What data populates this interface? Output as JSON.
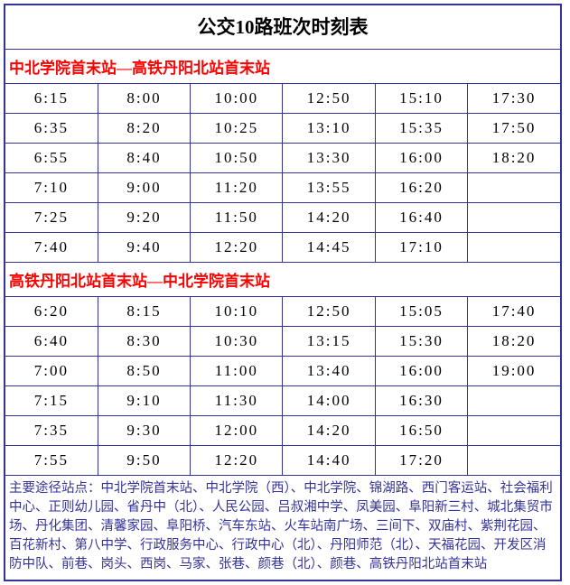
{
  "title": "公交10路班次时刻表",
  "direction1": {
    "header": "中北学院首末站—高铁丹阳北站首末站",
    "rows": [
      [
        "6:15",
        "8:00",
        "10:00",
        "12:50",
        "15:10",
        "17:30"
      ],
      [
        "6:35",
        "8:20",
        "10:25",
        "13:10",
        "15:35",
        "17:50"
      ],
      [
        "6:55",
        "8:40",
        "10:50",
        "13:30",
        "16:00",
        "18:20"
      ],
      [
        "7:10",
        "9:00",
        "11:20",
        "13:55",
        "16:20",
        ""
      ],
      [
        "7:25",
        "9:20",
        "11:50",
        "14:20",
        "16:40",
        ""
      ],
      [
        "7:40",
        "9:40",
        "12:20",
        "14:45",
        "17:10",
        ""
      ]
    ]
  },
  "direction2": {
    "header": "高铁丹阳北站首末站—中北学院首末站",
    "rows": [
      [
        "6:20",
        "8:15",
        "10:10",
        "12:50",
        "15:05",
        "17:40"
      ],
      [
        "6:40",
        "8:30",
        "10:30",
        "13:15",
        "15:30",
        "18:20"
      ],
      [
        "7:00",
        "8:50",
        "11:00",
        "13:40",
        "16:00",
        "19:00"
      ],
      [
        "7:15",
        "9:10",
        "11:30",
        "14:00",
        "16:30",
        ""
      ],
      [
        "7:35",
        "9:30",
        "12:00",
        "14:20",
        "16:50",
        ""
      ],
      [
        "7:55",
        "9:50",
        "12:20",
        "14:40",
        "17:20",
        ""
      ]
    ]
  },
  "stops_text": "主要途径站点：中北学院首末站、中北学院（西）、中北学院、锦湖路、西门客运站、社会福利中心、正则幼儿园、省丹中（北）、人民公园、吕叔湘中学、凤美园、阜阳新三村、城北集贸市场、丹化集团、清馨家园、阜阳桥、汽车东站、火车站南广场、三间下、双庙村、紫荆花园、百花新村、第八中学、行政服务中心、行政中心（北）、丹阳师范（北）、天福花园、开发区消防中队、前巷、岗头、西岗、马家、张巷、颜巷（北）、颜巷、高铁丹阳北站首末站",
  "colors": {
    "border": "#343399",
    "header_text": "#ff0000",
    "stops_text": "#343399",
    "body_text": "#000000",
    "background": "#ffffff"
  },
  "layout": {
    "columns": 6,
    "rows_per_direction": 6,
    "title_fontsize": 21,
    "header_fontsize": 17,
    "cell_fontsize": 17,
    "stops_fontsize": 14.5
  }
}
